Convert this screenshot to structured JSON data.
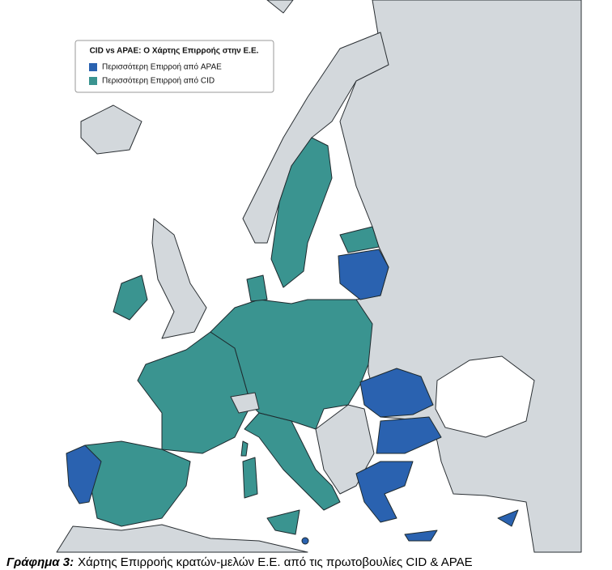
{
  "legend": {
    "title": "CID vs APAE: Ο Χάρτης Επιρροής στην Ε.Ε.",
    "items": [
      {
        "label": "Περισσότερη Επιρροή από APAE",
        "color": "#2a62b0"
      },
      {
        "label": "Περισσότερη Επιρροή από CID",
        "color": "#3a9490"
      }
    ]
  },
  "caption": {
    "label": "Γράφημα 3:",
    "text": "Χάρτης Επιρροής κρατών-μελών Ε.Ε. από τις πρωτοβουλίες CID & APAE"
  }
}
